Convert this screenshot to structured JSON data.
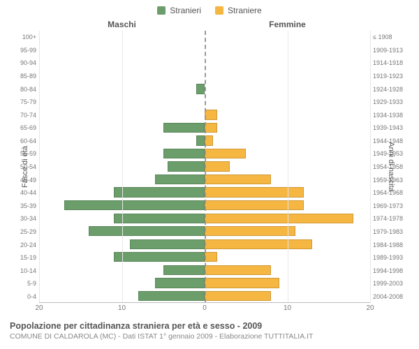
{
  "legend": {
    "male": {
      "label": "Stranieri",
      "color": "#6b9e6b"
    },
    "female": {
      "label": "Straniere",
      "color": "#f5b642"
    }
  },
  "headers": {
    "left": "Maschi",
    "right": "Femmine"
  },
  "axis_labels": {
    "left": "Fasce di età",
    "right": "Anni di nascita"
  },
  "xaxis": {
    "max": 20,
    "ticks": [
      20,
      10,
      0,
      10,
      20
    ]
  },
  "grid": {
    "color": "#e6e6e6"
  },
  "background_color": "#ffffff",
  "rows": [
    {
      "age": "100+",
      "birth": "≤ 1908",
      "m": 0,
      "f": 0
    },
    {
      "age": "95-99",
      "birth": "1909-1913",
      "m": 0,
      "f": 0
    },
    {
      "age": "90-94",
      "birth": "1914-1918",
      "m": 0,
      "f": 0
    },
    {
      "age": "85-89",
      "birth": "1919-1923",
      "m": 0,
      "f": 0
    },
    {
      "age": "80-84",
      "birth": "1924-1928",
      "m": 1,
      "f": 0
    },
    {
      "age": "75-79",
      "birth": "1929-1933",
      "m": 0,
      "f": 0
    },
    {
      "age": "70-74",
      "birth": "1934-1938",
      "m": 0,
      "f": 1.5
    },
    {
      "age": "65-69",
      "birth": "1939-1943",
      "m": 5,
      "f": 1.5
    },
    {
      "age": "60-64",
      "birth": "1944-1948",
      "m": 1,
      "f": 1
    },
    {
      "age": "55-59",
      "birth": "1949-1953",
      "m": 5,
      "f": 5
    },
    {
      "age": "50-54",
      "birth": "1954-1958",
      "m": 4.5,
      "f": 3
    },
    {
      "age": "45-49",
      "birth": "1959-1963",
      "m": 6,
      "f": 8
    },
    {
      "age": "40-44",
      "birth": "1964-1968",
      "m": 11,
      "f": 12
    },
    {
      "age": "35-39",
      "birth": "1969-1973",
      "m": 17,
      "f": 12
    },
    {
      "age": "30-34",
      "birth": "1974-1978",
      "m": 11,
      "f": 18
    },
    {
      "age": "25-29",
      "birth": "1979-1983",
      "m": 14,
      "f": 11
    },
    {
      "age": "20-24",
      "birth": "1984-1988",
      "m": 9,
      "f": 13
    },
    {
      "age": "15-19",
      "birth": "1989-1993",
      "m": 11,
      "f": 1.5
    },
    {
      "age": "10-14",
      "birth": "1994-1998",
      "m": 5,
      "f": 8
    },
    {
      "age": "5-9",
      "birth": "1999-2003",
      "m": 6,
      "f": 9
    },
    {
      "age": "0-4",
      "birth": "2004-2008",
      "m": 8,
      "f": 8
    }
  ],
  "caption": {
    "title": "Popolazione per cittadinanza straniera per età e sesso - 2009",
    "subtitle": "COMUNE DI CALDAROLA (MC) - Dati ISTAT 1° gennaio 2009 - Elaborazione TUTTITALIA.IT"
  },
  "fonts": {
    "label_size": 11,
    "tick_size": 10,
    "title_size": 12.5,
    "sub_size": 10.5
  }
}
